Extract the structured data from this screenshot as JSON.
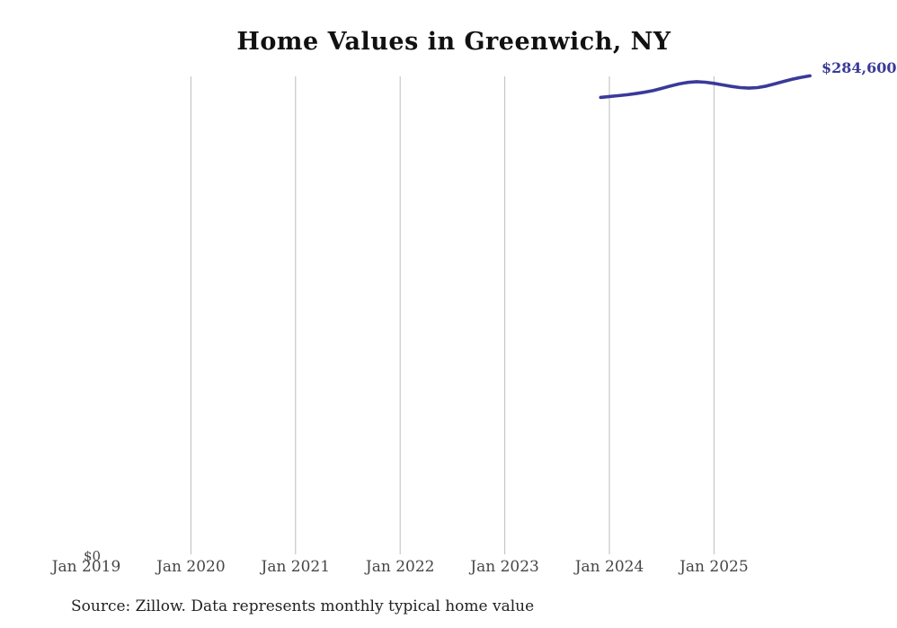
{
  "title": "Home Values in Greenwich, NY",
  "source_note": "Source: Zillow. Data represents monthly typical home value",
  "colors": {
    "line": "#3a3a99",
    "grid": "#bdbdbd",
    "axis_label": "#464646",
    "title": "#111111",
    "end_label": "#3a3a99"
  },
  "chart_data": {
    "type": "line",
    "title": "Home Values in Greenwich, NY",
    "xlabel": "",
    "ylabel": "",
    "grid": "vertical-only",
    "legend": "none",
    "x_ticks": [
      "Jan 2019",
      "Jan 2020",
      "Jan 2021",
      "Jan 2022",
      "Jan 2023",
      "Jan 2024",
      "Jan 2025"
    ],
    "x_range": [
      "Jan 2019",
      "Dec 2025"
    ],
    "y_axis": {
      "min": 0,
      "min_label": "$0"
    },
    "end_label": "$284,600",
    "series": [
      {
        "name": "Monthly typical home value",
        "points": [
          {
            "date": "2023-12",
            "value": 271800
          },
          {
            "date": "2024-01",
            "value": 272300
          },
          {
            "date": "2024-02",
            "value": 272800
          },
          {
            "date": "2024-03",
            "value": 273300
          },
          {
            "date": "2024-04",
            "value": 274000
          },
          {
            "date": "2024-05",
            "value": 274800
          },
          {
            "date": "2024-06",
            "value": 275800
          },
          {
            "date": "2024-07",
            "value": 277100
          },
          {
            "date": "2024-08",
            "value": 278500
          },
          {
            "date": "2024-09",
            "value": 279800
          },
          {
            "date": "2024-10",
            "value": 280700
          },
          {
            "date": "2024-11",
            "value": 281100
          },
          {
            "date": "2024-12",
            "value": 280800
          },
          {
            "date": "2025-01",
            "value": 280100
          },
          {
            "date": "2025-02",
            "value": 279200
          },
          {
            "date": "2025-03",
            "value": 278300
          },
          {
            "date": "2025-04",
            "value": 277600
          },
          {
            "date": "2025-05",
            "value": 277300
          },
          {
            "date": "2025-06",
            "value": 277600
          },
          {
            "date": "2025-07",
            "value": 278500
          },
          {
            "date": "2025-08",
            "value": 279900
          },
          {
            "date": "2025-09",
            "value": 281300
          },
          {
            "date": "2025-10",
            "value": 282600
          },
          {
            "date": "2025-11",
            "value": 283700
          },
          {
            "date": "2025-12",
            "value": 284600
          }
        ]
      }
    ]
  }
}
